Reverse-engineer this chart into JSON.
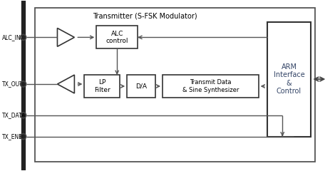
{
  "diagram_title": "Transmitter (S-FSK Modulator)",
  "bg_color": "#ffffff",
  "box_color": "#333333",
  "line_color": "#555555",
  "labels": {
    "alc_in": "ALC_IN",
    "tx_out": "TX_OUT",
    "tx_data": "TX_DATA",
    "tx_enb": "TX_ENB",
    "alc_control": "ALC\ncontrol",
    "lp_filter": "LP\nFilter",
    "da": "D/A",
    "transmit": "Transmit Data\n& Sine Synthesizer",
    "arm": "ARM\nInterface\n&\nControl"
  },
  "figsize": [
    4.7,
    2.4
  ],
  "dpi": 100
}
